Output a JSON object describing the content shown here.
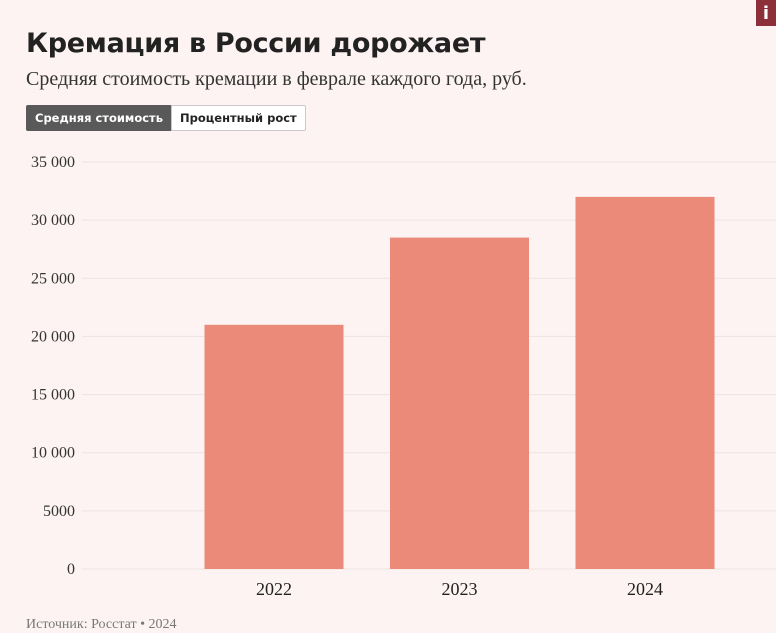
{
  "header": {
    "title": "Кремация в России дорожает",
    "subtitle": "Средняя стоимость кремации в феврале каждого года, руб.",
    "info_icon": "info-icon",
    "info_label": "i"
  },
  "tabs": [
    {
      "label": "Средняя стоимость",
      "active": true
    },
    {
      "label": "Процентный рост",
      "active": false
    }
  ],
  "colors": {
    "bar": "#ec8a79",
    "accent": "#8c2f39",
    "grid": "#ede3e3"
  },
  "chart_data": {
    "type": "bar",
    "categories": [
      "2022",
      "2023",
      "2024"
    ],
    "values": [
      21000,
      28500,
      32000
    ],
    "ylim": [
      0,
      35000
    ],
    "yticks": [
      0,
      5000,
      10000,
      15000,
      20000,
      25000,
      30000,
      35000
    ],
    "ytick_labels": [
      "0",
      "5000",
      "10 000",
      "15 000",
      "20 000",
      "25 000",
      "30 000",
      "35 000"
    ],
    "grid": true,
    "legend": "none"
  },
  "footer": {
    "source": "Источник: Росстат • 2024"
  }
}
